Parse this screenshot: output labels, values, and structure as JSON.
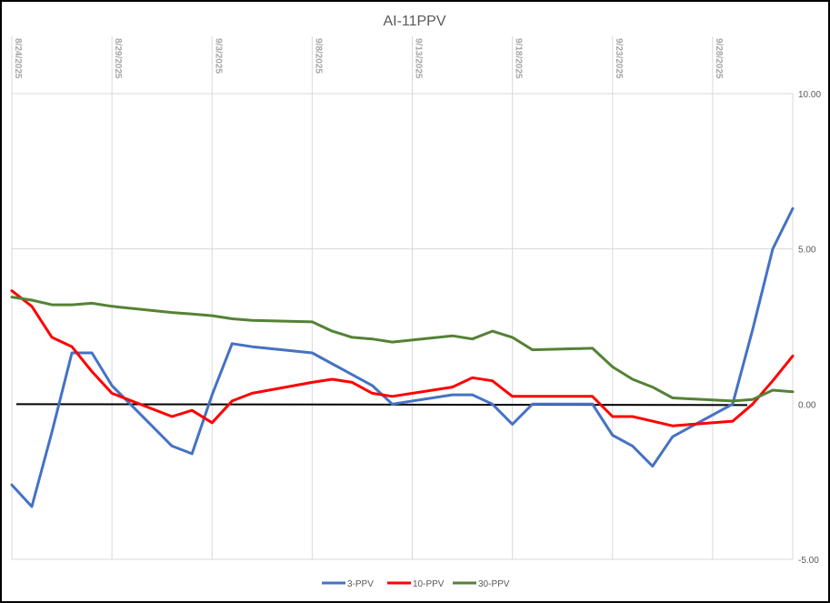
{
  "chart_data": {
    "type": "line",
    "title": "AI-11PPV",
    "xlabel": "",
    "ylabel": "",
    "ylim": [
      -5,
      10
    ],
    "y_ticks": [
      "10.00",
      "5.00",
      "0.00",
      "-5.00"
    ],
    "y_tick_values": [
      10,
      5,
      0,
      -5
    ],
    "y_axis_position": "right",
    "x_axis_position": "top",
    "grid": true,
    "legend_position": "bottom",
    "x_ticks": [
      "8/24/2025",
      "8/29/2025",
      "9/3/2025",
      "9/8/2025",
      "9/13/2025",
      "9/18/2025",
      "9/23/2025",
      "9/28/2025"
    ],
    "x_start": "8/24/2025",
    "x_end": "10/2/2025",
    "series": [
      {
        "name": "3-PPV",
        "color": "#4472c4",
        "x": [
          "8/24/2025",
          "8/25/2025",
          "8/26/2025",
          "8/27/2025",
          "8/28/2025",
          "8/29/2025",
          "9/1/2025",
          "9/2/2025",
          "9/3/2025",
          "9/4/2025",
          "9/5/2025",
          "9/8/2025",
          "9/9/2025",
          "9/10/2025",
          "9/11/2025",
          "9/12/2025",
          "9/15/2025",
          "9/16/2025",
          "9/17/2025",
          "9/18/2025",
          "9/19/2025",
          "9/22/2025",
          "9/23/2025",
          "9/24/2025",
          "9/25/2025",
          "9/26/2025",
          "9/29/2025",
          "9/30/2025",
          "10/1/2025",
          "10/2/2025"
        ],
        "y": [
          -2.6,
          -3.3,
          -0.9,
          1.65,
          1.65,
          0.6,
          -1.35,
          -1.6,
          0.3,
          1.95,
          1.85,
          1.65,
          1.3,
          0.95,
          0.6,
          0.0,
          0.3,
          0.3,
          0.0,
          -0.65,
          0.0,
          0.0,
          -1.0,
          -1.35,
          -2.0,
          -1.05,
          0.0,
          2.4,
          5.0,
          6.3
        ]
      },
      {
        "name": "10-PPV",
        "color": "#ff0000",
        "x": [
          "8/24/2025",
          "8/25/2025",
          "8/26/2025",
          "8/27/2025",
          "8/28/2025",
          "8/29/2025",
          "9/1/2025",
          "9/2/2025",
          "9/3/2025",
          "9/4/2025",
          "9/5/2025",
          "9/8/2025",
          "9/9/2025",
          "9/10/2025",
          "9/11/2025",
          "9/12/2025",
          "9/15/2025",
          "9/16/2025",
          "9/17/2025",
          "9/18/2025",
          "9/19/2025",
          "9/22/2025",
          "9/23/2025",
          "9/24/2025",
          "9/25/2025",
          "9/26/2025",
          "9/29/2025",
          "9/30/2025",
          "10/1/2025",
          "10/2/2025"
        ],
        "y": [
          3.65,
          3.15,
          2.15,
          1.85,
          1.05,
          0.35,
          -0.4,
          -0.2,
          -0.6,
          0.1,
          0.35,
          0.7,
          0.8,
          0.7,
          0.35,
          0.25,
          0.55,
          0.85,
          0.75,
          0.25,
          0.25,
          0.25,
          -0.4,
          -0.4,
          -0.55,
          -0.7,
          -0.55,
          0.0,
          0.75,
          1.55
        ]
      },
      {
        "name": "30-PPV",
        "color": "#548235",
        "x": [
          "8/24/2025",
          "8/25/2025",
          "8/26/2025",
          "8/27/2025",
          "8/28/2025",
          "8/29/2025",
          "9/1/2025",
          "9/2/2025",
          "9/3/2025",
          "9/4/2025",
          "9/5/2025",
          "9/8/2025",
          "9/9/2025",
          "9/10/2025",
          "9/11/2025",
          "9/12/2025",
          "9/15/2025",
          "9/16/2025",
          "9/17/2025",
          "9/18/2025",
          "9/19/2025",
          "9/22/2025",
          "9/23/2025",
          "9/24/2025",
          "9/25/2025",
          "9/26/2025",
          "9/29/2025",
          "9/30/2025",
          "10/1/2025",
          "10/2/2025"
        ],
        "y": [
          3.45,
          3.35,
          3.2,
          3.2,
          3.25,
          3.15,
          2.95,
          2.9,
          2.85,
          2.75,
          2.7,
          2.65,
          2.35,
          2.15,
          2.1,
          2.0,
          2.2,
          2.1,
          2.35,
          2.15,
          1.75,
          1.8,
          1.2,
          0.8,
          0.55,
          0.2,
          0.1,
          0.15,
          0.45,
          0.4
        ]
      }
    ],
    "zero_line_color": "#000000",
    "grid_color": "#d9d9d9"
  }
}
